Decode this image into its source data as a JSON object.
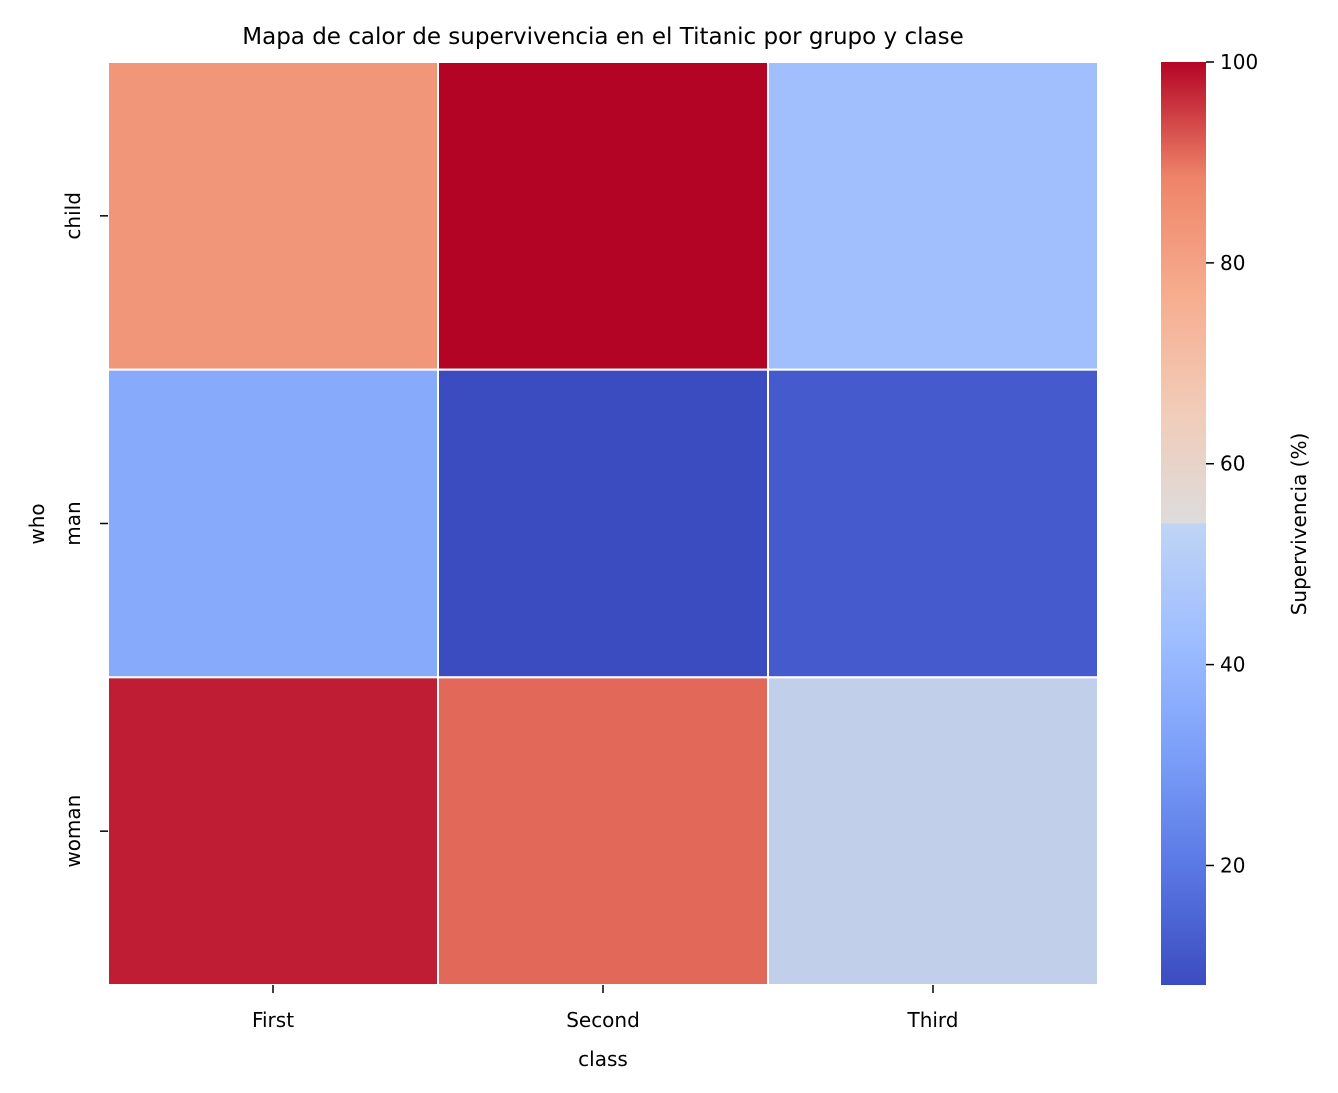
{
  "chart_data": {
    "type": "heatmap",
    "title": "Mapa de calor de supervivencia en el Titanic por grupo y clase",
    "xlabel": "class",
    "ylabel": "who",
    "x_categories": [
      "First",
      "Second",
      "Third"
    ],
    "y_categories": [
      "child",
      "man",
      "woman"
    ],
    "values": [
      [
        83.3,
        100.0,
        43.1
      ],
      [
        35.2,
        8.1,
        11.9
      ],
      [
        97.8,
        90.9,
        49.2
      ]
    ],
    "colorbar": {
      "label": "Supervivencia (%)",
      "range": [
        8.1,
        100.0
      ],
      "ticks": [
        "20",
        "40",
        "60",
        "80",
        "100"
      ],
      "tick_values": [
        20,
        40,
        60,
        80,
        100
      ],
      "colormap": "coolwarm"
    },
    "cell_border_color": "#ffffff"
  }
}
